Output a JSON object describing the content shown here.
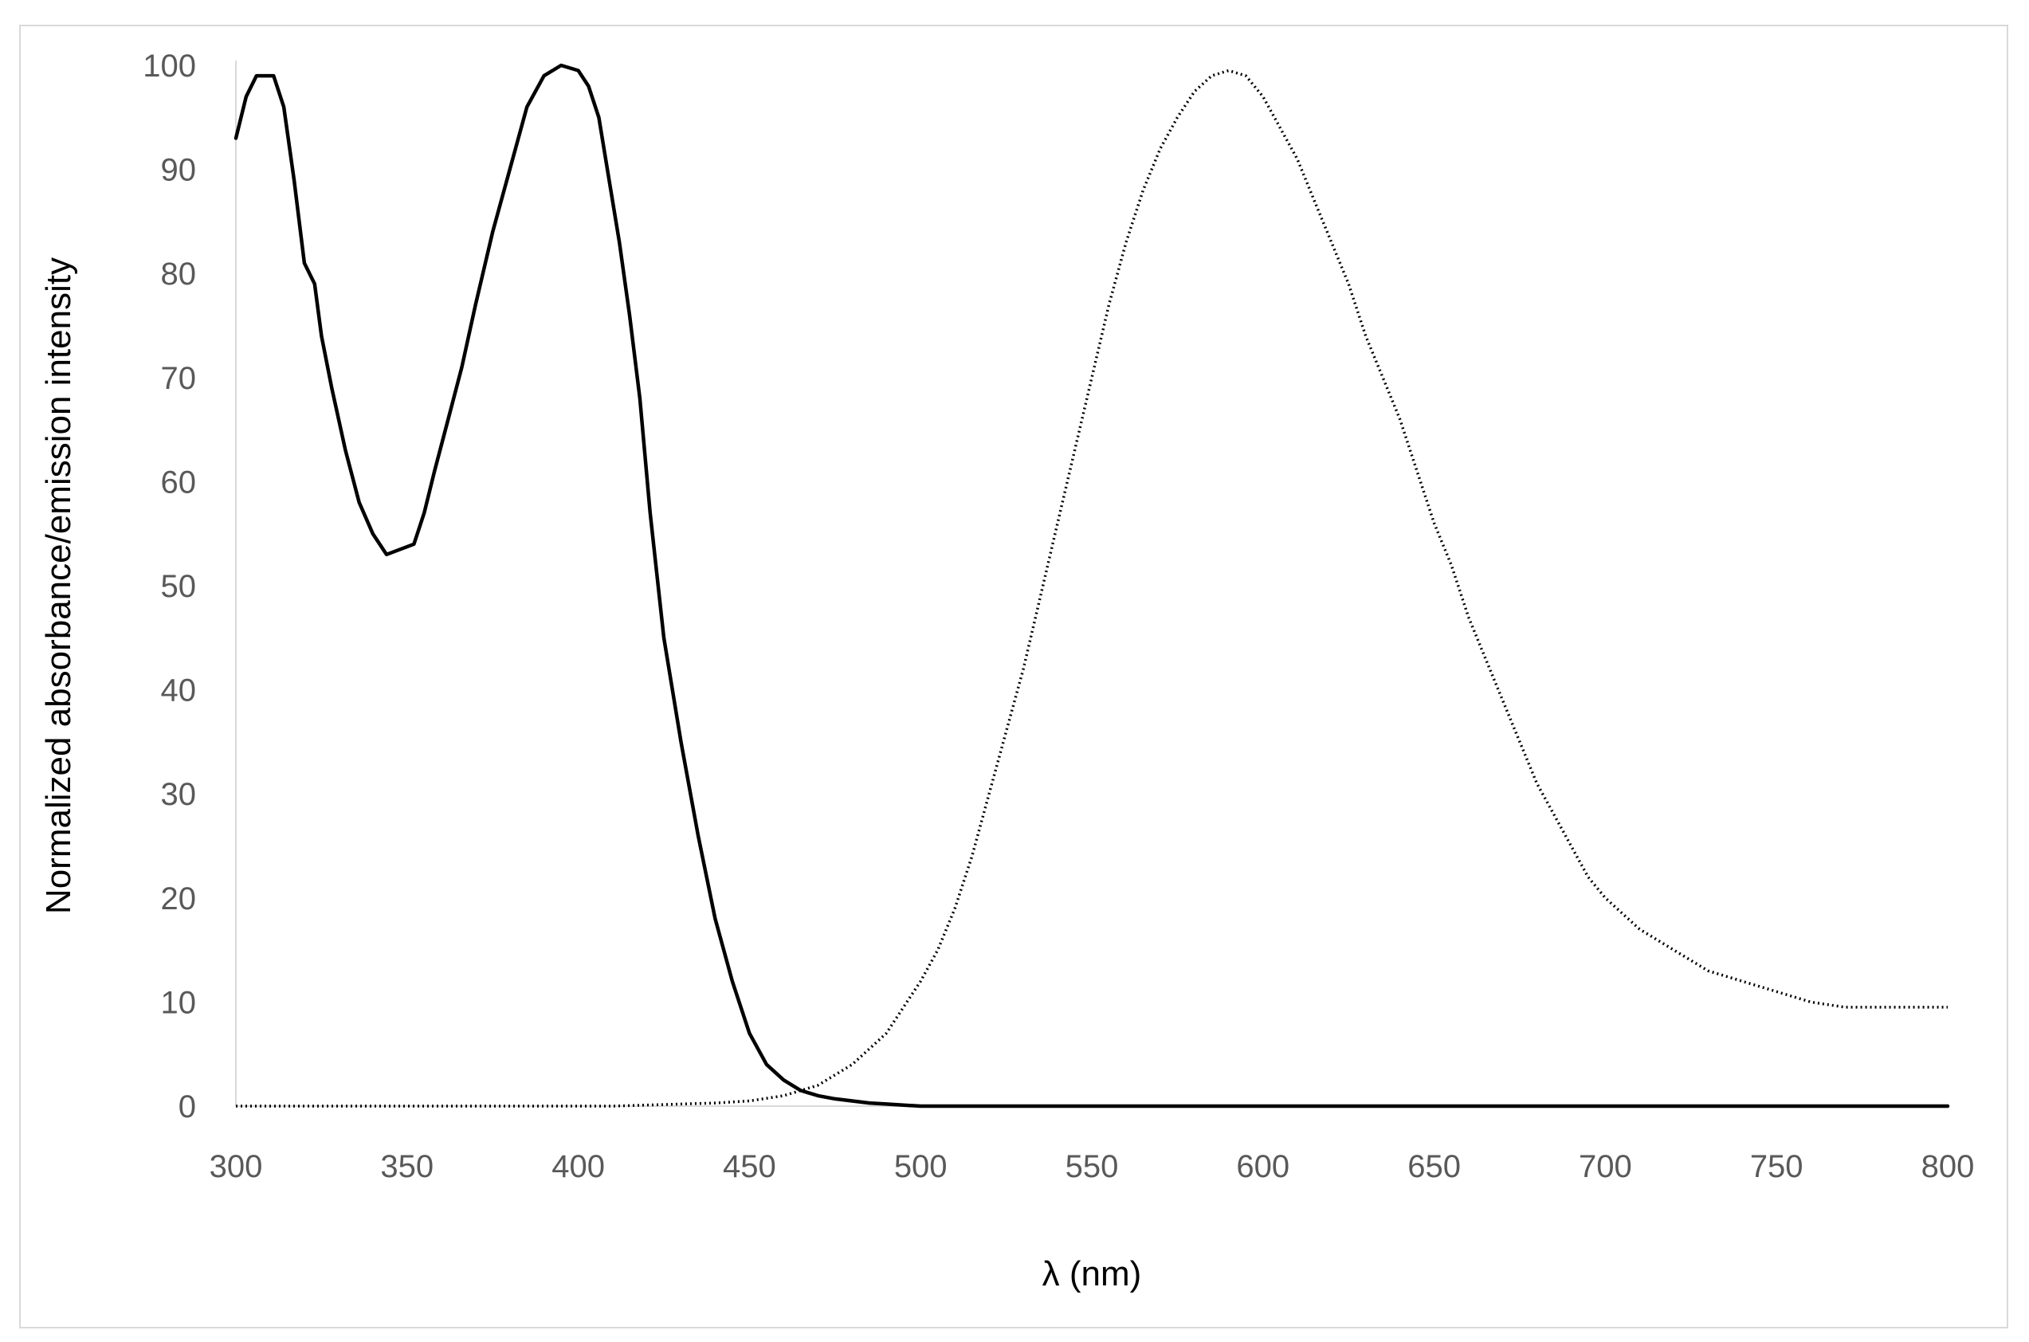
{
  "chart_data": {
    "type": "line",
    "title": "",
    "xlabel": "λ (nm)",
    "ylabel": "Normalized absorbance/emission  intensity",
    "xlim": [
      300,
      800
    ],
    "ylim": [
      0,
      100
    ],
    "x_ticks": [
      "300",
      "350",
      "400",
      "450",
      "500",
      "550",
      "600",
      "650",
      "700",
      "750",
      "800"
    ],
    "y_ticks": [
      "0",
      "10",
      "20",
      "30",
      "40",
      "50",
      "60",
      "70",
      "80",
      "90",
      "100"
    ],
    "grid": false,
    "legend": "none",
    "series": [
      {
        "style": "solid",
        "color": "#000000",
        "x": [
          300,
          303,
          306,
          308,
          311,
          314,
          317,
          320,
          323,
          325,
          328,
          332,
          336,
          340,
          344,
          348,
          352,
          355,
          358,
          362,
          366,
          370,
          375,
          380,
          385,
          390,
          395,
          400,
          403,
          406,
          409,
          412,
          415,
          418,
          421,
          425,
          430,
          435,
          440,
          445,
          450,
          455,
          460,
          465,
          470,
          475,
          480,
          485,
          490,
          495,
          500,
          510,
          550,
          600,
          700,
          800
        ],
        "y": [
          93,
          97,
          99,
          99,
          99,
          96,
          89,
          81,
          79,
          74,
          69,
          63,
          58,
          55,
          53,
          53.5,
          54,
          57,
          61,
          66,
          71,
          77,
          84,
          90,
          96,
          99,
          100,
          99.5,
          98,
          95,
          89,
          83,
          76,
          68,
          57,
          45,
          35,
          26,
          18,
          12,
          7,
          4,
          2.5,
          1.5,
          1.0,
          0.7,
          0.5,
          0.3,
          0.2,
          0.1,
          0,
          0,
          0,
          0,
          0,
          0
        ]
      },
      {
        "style": "dotted",
        "color": "#000000",
        "x": [
          300,
          400,
          410,
          420,
          430,
          440,
          450,
          460,
          470,
          475,
          480,
          485,
          490,
          495,
          500,
          505,
          510,
          515,
          520,
          525,
          530,
          535,
          540,
          545,
          550,
          555,
          560,
          565,
          570,
          575,
          580,
          585,
          590,
          595,
          600,
          605,
          610,
          615,
          620,
          625,
          630,
          635,
          640,
          645,
          650,
          655,
          660,
          665,
          670,
          675,
          680,
          685,
          690,
          695,
          700,
          710,
          720,
          730,
          740,
          750,
          760,
          770,
          780,
          790,
          800
        ],
        "y": [
          0,
          0,
          0,
          0.1,
          0.2,
          0.3,
          0.5,
          1.0,
          2.0,
          3.0,
          4.0,
          5.5,
          7.0,
          9.5,
          12,
          15,
          19,
          24,
          30,
          36,
          42,
          49,
          56,
          63,
          70,
          77,
          83,
          88,
          92,
          95,
          97.5,
          99,
          99.5,
          99,
          97,
          94,
          91,
          87,
          83,
          79,
          74,
          70,
          66,
          61,
          56,
          52,
          47,
          43,
          39,
          35,
          31,
          28,
          25,
          22,
          20,
          17,
          15,
          13,
          12,
          11,
          10,
          9.5,
          9.5,
          9.5,
          9.5
        ]
      }
    ]
  }
}
